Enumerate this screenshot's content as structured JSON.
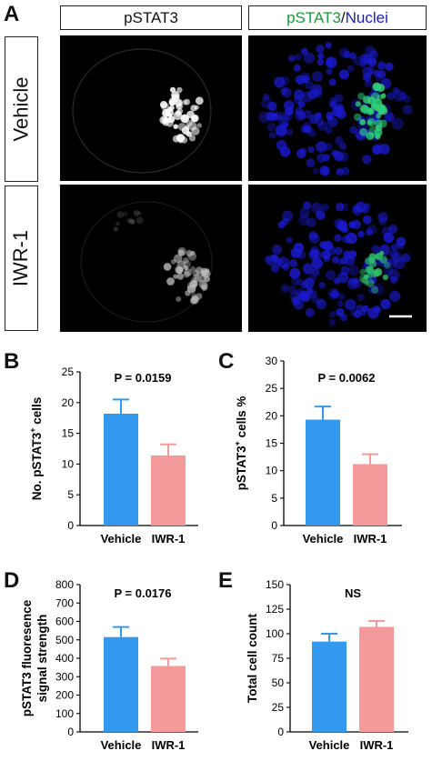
{
  "panel_a": {
    "letter": "A",
    "header_left": "pSTAT3",
    "header_right_a": "pSTAT3",
    "header_right_sep": "/",
    "header_right_b": "Nuclei",
    "row1_label": "Vehicle",
    "row2_label": "IWR-1",
    "colors": {
      "green": "#1a9a3a",
      "blue": "#1a1ad0"
    }
  },
  "chart_data": [
    {
      "letter": "B",
      "type": "bar",
      "categories": [
        "Vehicle",
        "IWR-1"
      ],
      "values": [
        18.2,
        11.4
      ],
      "errors": [
        2.3,
        1.8
      ],
      "ylabel_main": "No. pSTAT3",
      "ylabel_sup": "+",
      "ylabel_tail": " cells",
      "annotation": "P = 0.0159",
      "ylim": [
        0,
        25
      ],
      "yticks": [
        0,
        5,
        10,
        15,
        20,
        25
      ],
      "colors": [
        "#3399ee",
        "#f59a9a"
      ]
    },
    {
      "letter": "C",
      "type": "bar",
      "categories": [
        "Vehicle",
        "IWR-1"
      ],
      "values": [
        19.3,
        11.2
      ],
      "errors": [
        2.4,
        1.8
      ],
      "ylabel_main": "pSTAT3",
      "ylabel_sup": "+",
      "ylabel_tail": " cells %",
      "annotation": "P = 0.0062",
      "ylim": [
        0,
        30
      ],
      "yticks": [
        0,
        5,
        10,
        15,
        20,
        25,
        30
      ],
      "colors": [
        "#3399ee",
        "#f59a9a"
      ]
    },
    {
      "letter": "D",
      "type": "bar",
      "categories": [
        "Vehicle",
        "IWR-1"
      ],
      "values": [
        515,
        358
      ],
      "errors": [
        55,
        40
      ],
      "ylabel_main": "pSTAT3 fluoresence",
      "ylabel_line2": "signal strength",
      "annotation": "P = 0.0176",
      "ylim": [
        0,
        800
      ],
      "yticks": [
        0,
        100,
        200,
        300,
        400,
        500,
        600,
        700,
        800
      ],
      "colors": [
        "#3399ee",
        "#f59a9a"
      ]
    },
    {
      "letter": "E",
      "type": "bar",
      "categories": [
        "Vehicle",
        "IWR-1"
      ],
      "values": [
        92,
        107
      ],
      "errors": [
        8,
        6
      ],
      "ylabel_main": "Total cell count",
      "annotation": "NS",
      "ylim": [
        0,
        150
      ],
      "yticks": [
        0,
        25,
        50,
        75,
        100,
        125,
        150
      ],
      "colors": [
        "#3399ee",
        "#f59a9a"
      ]
    }
  ]
}
